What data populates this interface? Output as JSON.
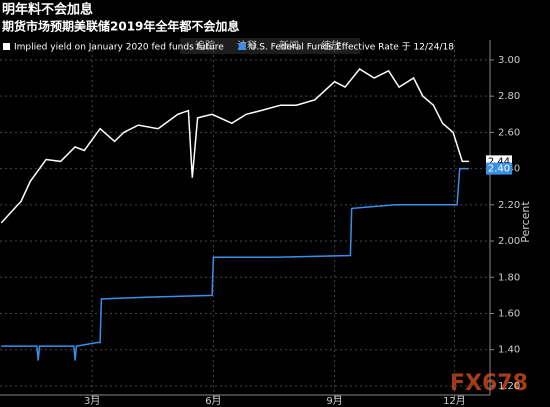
{
  "chart_data": {
    "type": "line",
    "title": "明年料不会加息",
    "subtitle": "期货市场预期美联储2019年全年都不会加息",
    "y_label": "Percent",
    "toolbar": [
      "追踪",
      "注释",
      "新闻",
      "缩放"
    ],
    "watermark": "FX678",
    "xlim": [
      -10,
      362
    ],
    "xticks": [
      {
        "value": 60,
        "label": "3月"
      },
      {
        "value": 152,
        "label": "6月"
      },
      {
        "value": 244,
        "label": "9月"
      },
      {
        "value": 335,
        "label": "12月"
      }
    ],
    "ylim": [
      1.15,
      3.11
    ],
    "yticks": [
      {
        "value": 1.2,
        "label": "1.20"
      },
      {
        "value": 1.4,
        "label": "1.40"
      },
      {
        "value": 1.6,
        "label": "1.60"
      },
      {
        "value": 1.8,
        "label": "1.80"
      },
      {
        "value": 2.0,
        "label": "2.00"
      },
      {
        "value": 2.2,
        "label": "2.20"
      },
      {
        "value": 2.4,
        "label": "2.40"
      },
      {
        "value": 2.6,
        "label": "2.60"
      },
      {
        "value": 2.8,
        "label": "2.80"
      },
      {
        "value": 3.0,
        "label": "3.00"
      }
    ],
    "grid": true,
    "series": [
      {
        "name": "Implied yield on January 2020 fed funds future",
        "color": "#ffffff",
        "x": [
          -9,
          6,
          13,
          25,
          36,
          47,
          54,
          66,
          77,
          84,
          95,
          110,
          125,
          133,
          136,
          140,
          151,
          166,
          177,
          188,
          203,
          215,
          229,
          244,
          252,
          263,
          274,
          285,
          293,
          304,
          311,
          319,
          326,
          334,
          341,
          346
        ],
        "values": [
          2.1,
          2.22,
          2.33,
          2.45,
          2.44,
          2.52,
          2.5,
          2.62,
          2.55,
          2.6,
          2.64,
          2.62,
          2.7,
          2.72,
          2.35,
          2.68,
          2.7,
          2.65,
          2.7,
          2.72,
          2.75,
          2.75,
          2.78,
          2.88,
          2.85,
          2.95,
          2.9,
          2.94,
          2.85,
          2.9,
          2.8,
          2.75,
          2.65,
          2.6,
          2.44,
          2.44
        ]
      },
      {
        "name": "U.S. Federal Funds Effective Rate 于 12/24/18",
        "color": "#3a8fe8",
        "x": [
          -9,
          18,
          19,
          20,
          46,
          47,
          48,
          64,
          66,
          67,
          100,
          151,
          152,
          200,
          256,
          257,
          290,
          337,
          339,
          346
        ],
        "values": [
          1.42,
          1.42,
          1.34,
          1.42,
          1.42,
          1.34,
          1.42,
          1.44,
          1.44,
          1.68,
          1.69,
          1.7,
          1.91,
          1.91,
          1.92,
          2.18,
          2.2,
          2.2,
          2.4,
          2.4
        ],
        "value_labels": [
          null,
          null,
          null,
          null,
          null,
          null,
          null,
          null,
          null,
          null,
          null,
          null,
          null,
          null,
          null,
          null,
          null,
          null,
          null,
          "2.40"
        ]
      }
    ]
  }
}
